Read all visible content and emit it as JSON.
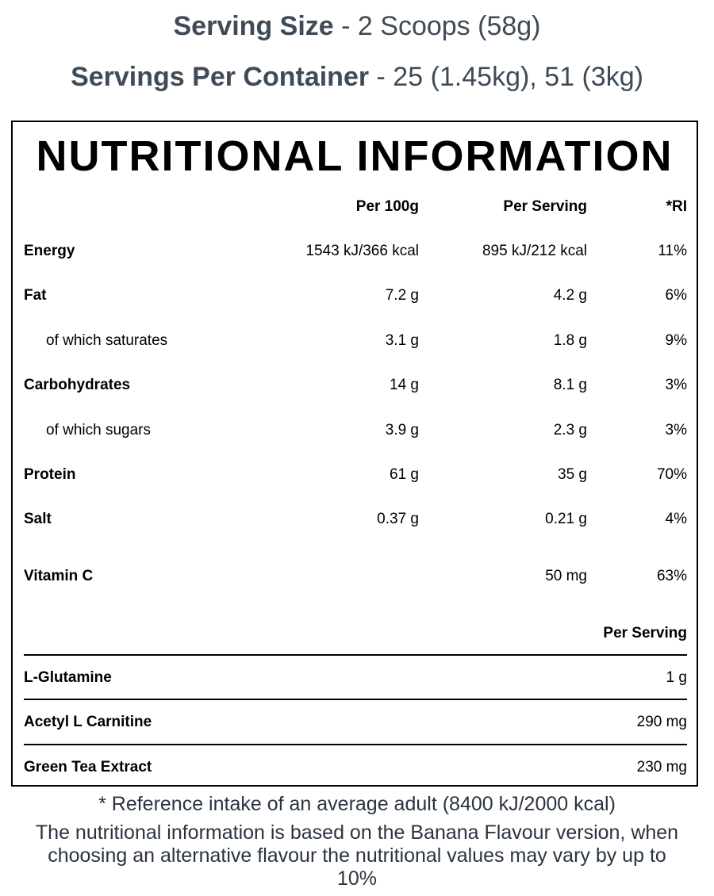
{
  "header": {
    "serving_size_label": "Serving Size",
    "serving_size_value": " - 2 Scoops (58g)",
    "servings_per_container_label": "Servings Per Container",
    "servings_per_container_value": " - 25 (1.45kg), 51 (3kg)"
  },
  "panel": {
    "title": "NUTRITIONAL INFORMATION",
    "columns": {
      "per100": "Per 100g",
      "perserving": "Per Serving",
      "ri": "*RI"
    },
    "rows": [
      {
        "label": "Energy",
        "per100": "1543 kJ/366 kcal",
        "perserving": "895 kJ/212 kcal",
        "ri": "11%"
      },
      {
        "label": "Fat",
        "per100": "7.2 g",
        "perserving": "4.2 g",
        "ri": "6%"
      },
      {
        "label": "of which saturates",
        "per100": "3.1 g",
        "perserving": "1.8 g",
        "ri": "9%"
      },
      {
        "label": "Carbohydrates",
        "per100": "14 g",
        "perserving": "8.1 g",
        "ri": "3%"
      },
      {
        "label": "of which sugars",
        "per100": "3.9 g",
        "perserving": "2.3 g",
        "ri": "3%"
      },
      {
        "label": "Protein",
        "per100": "61 g",
        "perserving": "35 g",
        "ri": "70%"
      },
      {
        "label": "Salt",
        "per100": "0.37 g",
        "perserving": "0.21 g",
        "ri": "4%"
      },
      {
        "label": "Vitamin C",
        "per100": "",
        "perserving": "50 mg",
        "ri": "63%"
      }
    ],
    "extras_header": "Per Serving",
    "extras": [
      {
        "label": "L-Glutamine",
        "value": "1 g"
      },
      {
        "label": "Acetyl L Carnitine",
        "value": "290 mg"
      },
      {
        "label": "Green Tea Extract",
        "value": "230 mg"
      }
    ]
  },
  "footer": {
    "reference_note": "* Reference intake of an average adult (8400 kJ/2000 kcal)",
    "flavour_note": "The nutritional information is based on the Banana Flavour version, when choosing an alternative flavour the nutritional values may vary by up to 10%"
  }
}
